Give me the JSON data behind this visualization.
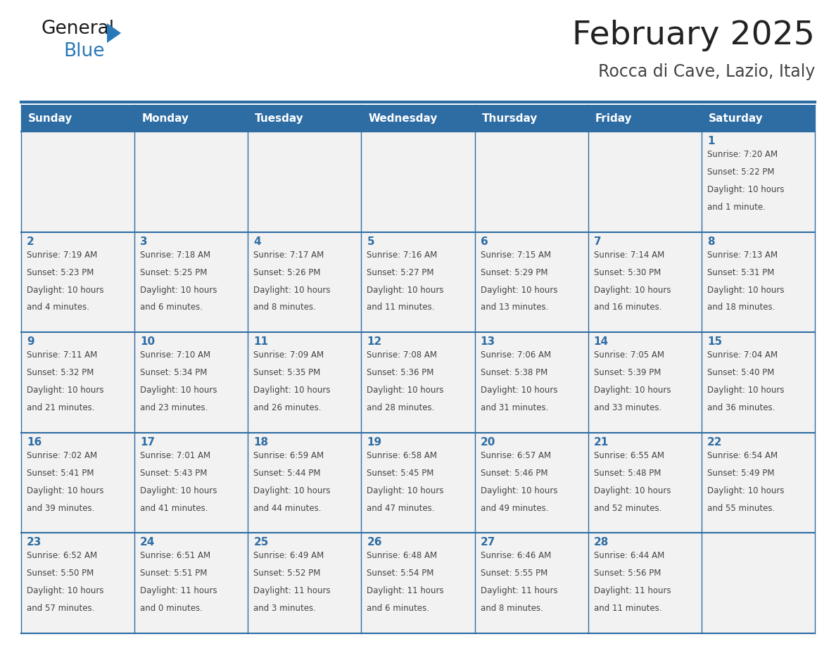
{
  "title": "February 2025",
  "subtitle": "Rocca di Cave, Lazio, Italy",
  "days_of_week": [
    "Sunday",
    "Monday",
    "Tuesday",
    "Wednesday",
    "Thursday",
    "Friday",
    "Saturday"
  ],
  "header_bg": "#2E6DA4",
  "header_text": "#FFFFFF",
  "cell_bg": "#F2F2F2",
  "border_color": "#2E6DA4",
  "day_num_color": "#2E6DA4",
  "cell_text_color": "#444444",
  "title_color": "#222222",
  "subtitle_color": "#444444",
  "calendar": [
    [
      null,
      null,
      null,
      null,
      null,
      null,
      {
        "day": "1",
        "sunrise": "7:20 AM",
        "sunset": "5:22 PM",
        "daylight": "10 hours",
        "daylight2": "and 1 minute."
      }
    ],
    [
      {
        "day": "2",
        "sunrise": "7:19 AM",
        "sunset": "5:23 PM",
        "daylight": "10 hours",
        "daylight2": "and 4 minutes."
      },
      {
        "day": "3",
        "sunrise": "7:18 AM",
        "sunset": "5:25 PM",
        "daylight": "10 hours",
        "daylight2": "and 6 minutes."
      },
      {
        "day": "4",
        "sunrise": "7:17 AM",
        "sunset": "5:26 PM",
        "daylight": "10 hours",
        "daylight2": "and 8 minutes."
      },
      {
        "day": "5",
        "sunrise": "7:16 AM",
        "sunset": "5:27 PM",
        "daylight": "10 hours",
        "daylight2": "and 11 minutes."
      },
      {
        "day": "6",
        "sunrise": "7:15 AM",
        "sunset": "5:29 PM",
        "daylight": "10 hours",
        "daylight2": "and 13 minutes."
      },
      {
        "day": "7",
        "sunrise": "7:14 AM",
        "sunset": "5:30 PM",
        "daylight": "10 hours",
        "daylight2": "and 16 minutes."
      },
      {
        "day": "8",
        "sunrise": "7:13 AM",
        "sunset": "5:31 PM",
        "daylight": "10 hours",
        "daylight2": "and 18 minutes."
      }
    ],
    [
      {
        "day": "9",
        "sunrise": "7:11 AM",
        "sunset": "5:32 PM",
        "daylight": "10 hours",
        "daylight2": "and 21 minutes."
      },
      {
        "day": "10",
        "sunrise": "7:10 AM",
        "sunset": "5:34 PM",
        "daylight": "10 hours",
        "daylight2": "and 23 minutes."
      },
      {
        "day": "11",
        "sunrise": "7:09 AM",
        "sunset": "5:35 PM",
        "daylight": "10 hours",
        "daylight2": "and 26 minutes."
      },
      {
        "day": "12",
        "sunrise": "7:08 AM",
        "sunset": "5:36 PM",
        "daylight": "10 hours",
        "daylight2": "and 28 minutes."
      },
      {
        "day": "13",
        "sunrise": "7:06 AM",
        "sunset": "5:38 PM",
        "daylight": "10 hours",
        "daylight2": "and 31 minutes."
      },
      {
        "day": "14",
        "sunrise": "7:05 AM",
        "sunset": "5:39 PM",
        "daylight": "10 hours",
        "daylight2": "and 33 minutes."
      },
      {
        "day": "15",
        "sunrise": "7:04 AM",
        "sunset": "5:40 PM",
        "daylight": "10 hours",
        "daylight2": "and 36 minutes."
      }
    ],
    [
      {
        "day": "16",
        "sunrise": "7:02 AM",
        "sunset": "5:41 PM",
        "daylight": "10 hours",
        "daylight2": "and 39 minutes."
      },
      {
        "day": "17",
        "sunrise": "7:01 AM",
        "sunset": "5:43 PM",
        "daylight": "10 hours",
        "daylight2": "and 41 minutes."
      },
      {
        "day": "18",
        "sunrise": "6:59 AM",
        "sunset": "5:44 PM",
        "daylight": "10 hours",
        "daylight2": "and 44 minutes."
      },
      {
        "day": "19",
        "sunrise": "6:58 AM",
        "sunset": "5:45 PM",
        "daylight": "10 hours",
        "daylight2": "and 47 minutes."
      },
      {
        "day": "20",
        "sunrise": "6:57 AM",
        "sunset": "5:46 PM",
        "daylight": "10 hours",
        "daylight2": "and 49 minutes."
      },
      {
        "day": "21",
        "sunrise": "6:55 AM",
        "sunset": "5:48 PM",
        "daylight": "10 hours",
        "daylight2": "and 52 minutes."
      },
      {
        "day": "22",
        "sunrise": "6:54 AM",
        "sunset": "5:49 PM",
        "daylight": "10 hours",
        "daylight2": "and 55 minutes."
      }
    ],
    [
      {
        "day": "23",
        "sunrise": "6:52 AM",
        "sunset": "5:50 PM",
        "daylight": "10 hours",
        "daylight2": "and 57 minutes."
      },
      {
        "day": "24",
        "sunrise": "6:51 AM",
        "sunset": "5:51 PM",
        "daylight": "11 hours",
        "daylight2": "and 0 minutes."
      },
      {
        "day": "25",
        "sunrise": "6:49 AM",
        "sunset": "5:52 PM",
        "daylight": "11 hours",
        "daylight2": "and 3 minutes."
      },
      {
        "day": "26",
        "sunrise": "6:48 AM",
        "sunset": "5:54 PM",
        "daylight": "11 hours",
        "daylight2": "and 6 minutes."
      },
      {
        "day": "27",
        "sunrise": "6:46 AM",
        "sunset": "5:55 PM",
        "daylight": "11 hours",
        "daylight2": "and 8 minutes."
      },
      {
        "day": "28",
        "sunrise": "6:44 AM",
        "sunset": "5:56 PM",
        "daylight": "11 hours",
        "daylight2": "and 11 minutes."
      },
      null
    ]
  ],
  "logo_general_color": "#1a1a1a",
  "logo_blue_color": "#2979B8",
  "logo_triangle_color": "#2979B8"
}
